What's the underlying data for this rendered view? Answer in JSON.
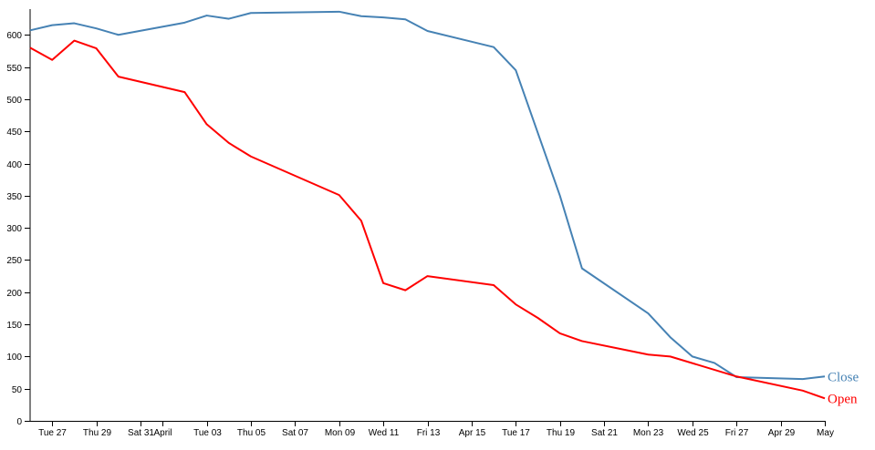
{
  "chart_data": {
    "type": "line",
    "title": "",
    "xlabel": "",
    "ylabel": "",
    "ylim": [
      0,
      640
    ],
    "grid": false,
    "legend": "inline labels at line ends",
    "y_ticks": [
      0,
      50,
      100,
      150,
      200,
      250,
      300,
      350,
      400,
      450,
      500,
      550,
      600
    ],
    "x_domain": [
      "2018-03-26",
      "2018-05-01"
    ],
    "x_ticks": [
      {
        "date": "2018-03-27",
        "label": "Tue 27"
      },
      {
        "date": "2018-03-29",
        "label": "Thu 29"
      },
      {
        "date": "2018-03-31",
        "label": "Sat 31"
      },
      {
        "date": "2018-04-01",
        "label": "April"
      },
      {
        "date": "2018-04-03",
        "label": "Tue 03"
      },
      {
        "date": "2018-04-05",
        "label": "Thu 05"
      },
      {
        "date": "2018-04-07",
        "label": "Sat 07"
      },
      {
        "date": "2018-04-09",
        "label": "Mon 09"
      },
      {
        "date": "2018-04-11",
        "label": "Wed 11"
      },
      {
        "date": "2018-04-13",
        "label": "Fri 13"
      },
      {
        "date": "2018-04-15",
        "label": "Apr 15"
      },
      {
        "date": "2018-04-17",
        "label": "Tue 17"
      },
      {
        "date": "2018-04-19",
        "label": "Thu 19"
      },
      {
        "date": "2018-04-21",
        "label": "Sat 21"
      },
      {
        "date": "2018-04-23",
        "label": "Mon 23"
      },
      {
        "date": "2018-04-25",
        "label": "Wed 25"
      },
      {
        "date": "2018-04-27",
        "label": "Fri 27"
      },
      {
        "date": "2018-04-29",
        "label": "Apr 29"
      },
      {
        "date": "2018-05-01",
        "label": "May"
      }
    ],
    "series": [
      {
        "name": "Close",
        "color": "#4682b4",
        "points": [
          {
            "x": "2018-03-26",
            "y": 607
          },
          {
            "x": "2018-03-27",
            "y": 615
          },
          {
            "x": "2018-03-28",
            "y": 618
          },
          {
            "x": "2018-03-29",
            "y": 610
          },
          {
            "x": "2018-03-30",
            "y": 600
          },
          {
            "x": "2018-04-02",
            "y": 619
          },
          {
            "x": "2018-04-03",
            "y": 630
          },
          {
            "x": "2018-04-04",
            "y": 625
          },
          {
            "x": "2018-04-05",
            "y": 634
          },
          {
            "x": "2018-04-09",
            "y": 636
          },
          {
            "x": "2018-04-10",
            "y": 629
          },
          {
            "x": "2018-04-11",
            "y": 627
          },
          {
            "x": "2018-04-12",
            "y": 624
          },
          {
            "x": "2018-04-13",
            "y": 606
          },
          {
            "x": "2018-04-16",
            "y": 581
          },
          {
            "x": "2018-04-17",
            "y": 545
          },
          {
            "x": "2018-04-19",
            "y": 350
          },
          {
            "x": "2018-04-20",
            "y": 237
          },
          {
            "x": "2018-04-23",
            "y": 167
          },
          {
            "x": "2018-04-24",
            "y": 130
          },
          {
            "x": "2018-04-25",
            "y": 100
          },
          {
            "x": "2018-04-26",
            "y": 90
          },
          {
            "x": "2018-04-27",
            "y": 68
          },
          {
            "x": "2018-04-30",
            "y": 65
          },
          {
            "x": "2018-05-01",
            "y": 69
          }
        ]
      },
      {
        "name": "Open",
        "color": "#ff0000",
        "points": [
          {
            "x": "2018-03-26",
            "y": 580
          },
          {
            "x": "2018-03-27",
            "y": 561
          },
          {
            "x": "2018-03-28",
            "y": 591
          },
          {
            "x": "2018-03-29",
            "y": 579
          },
          {
            "x": "2018-03-30",
            "y": 535
          },
          {
            "x": "2018-04-02",
            "y": 511
          },
          {
            "x": "2018-04-03",
            "y": 461
          },
          {
            "x": "2018-04-04",
            "y": 432
          },
          {
            "x": "2018-04-05",
            "y": 411
          },
          {
            "x": "2018-04-09",
            "y": 351
          },
          {
            "x": "2018-04-10",
            "y": 311
          },
          {
            "x": "2018-04-11",
            "y": 214
          },
          {
            "x": "2018-04-12",
            "y": 203
          },
          {
            "x": "2018-04-13",
            "y": 225
          },
          {
            "x": "2018-04-16",
            "y": 211
          },
          {
            "x": "2018-04-17",
            "y": 181
          },
          {
            "x": "2018-04-18",
            "y": 160
          },
          {
            "x": "2018-04-19",
            "y": 136
          },
          {
            "x": "2018-04-20",
            "y": 124
          },
          {
            "x": "2018-04-23",
            "y": 103
          },
          {
            "x": "2018-04-24",
            "y": 100
          },
          {
            "x": "2018-04-27",
            "y": 69
          },
          {
            "x": "2018-04-30",
            "y": 47
          },
          {
            "x": "2018-05-01",
            "y": 35
          }
        ]
      }
    ]
  }
}
